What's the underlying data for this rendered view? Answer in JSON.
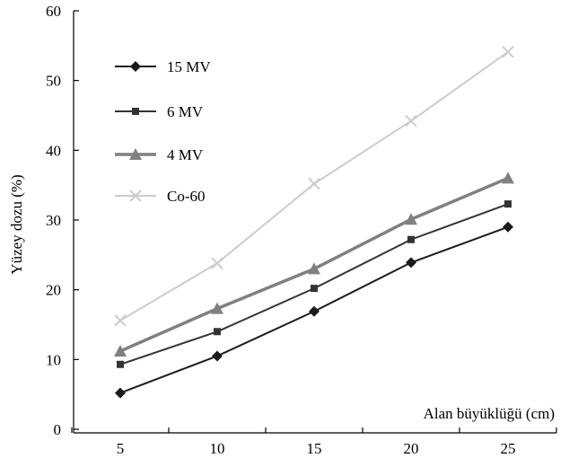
{
  "chart_data": {
    "type": "line",
    "xlabel": "Alan büyüklüğü (cm)",
    "ylabel": "Yüzey dozu (%)",
    "categories": [
      "5",
      "10",
      "15",
      "20",
      "25"
    ],
    "x": [
      5,
      10,
      15,
      20,
      25
    ],
    "ylim": [
      0,
      60
    ],
    "yticks": [
      "0",
      "10",
      "20",
      "30",
      "40",
      "50",
      "60"
    ],
    "grid": false,
    "legend_position": "top-left",
    "series": [
      {
        "name": "15 MV",
        "values": [
          5.2,
          10.5,
          16.9,
          23.9,
          29.0
        ],
        "marker": "diamond",
        "color": "#1a1a1a"
      },
      {
        "name": "6 MV",
        "values": [
          9.3,
          14.0,
          20.2,
          27.2,
          32.3
        ],
        "marker": "square",
        "color": "#333333"
      },
      {
        "name": "4 MV",
        "values": [
          11.2,
          17.3,
          23.0,
          30.1,
          36.0
        ],
        "marker": "triangle",
        "color": "#808080"
      },
      {
        "name": "Co-60",
        "values": [
          15.6,
          23.8,
          35.2,
          44.2,
          54.1
        ],
        "marker": "x",
        "color": "#cccccc"
      }
    ]
  }
}
